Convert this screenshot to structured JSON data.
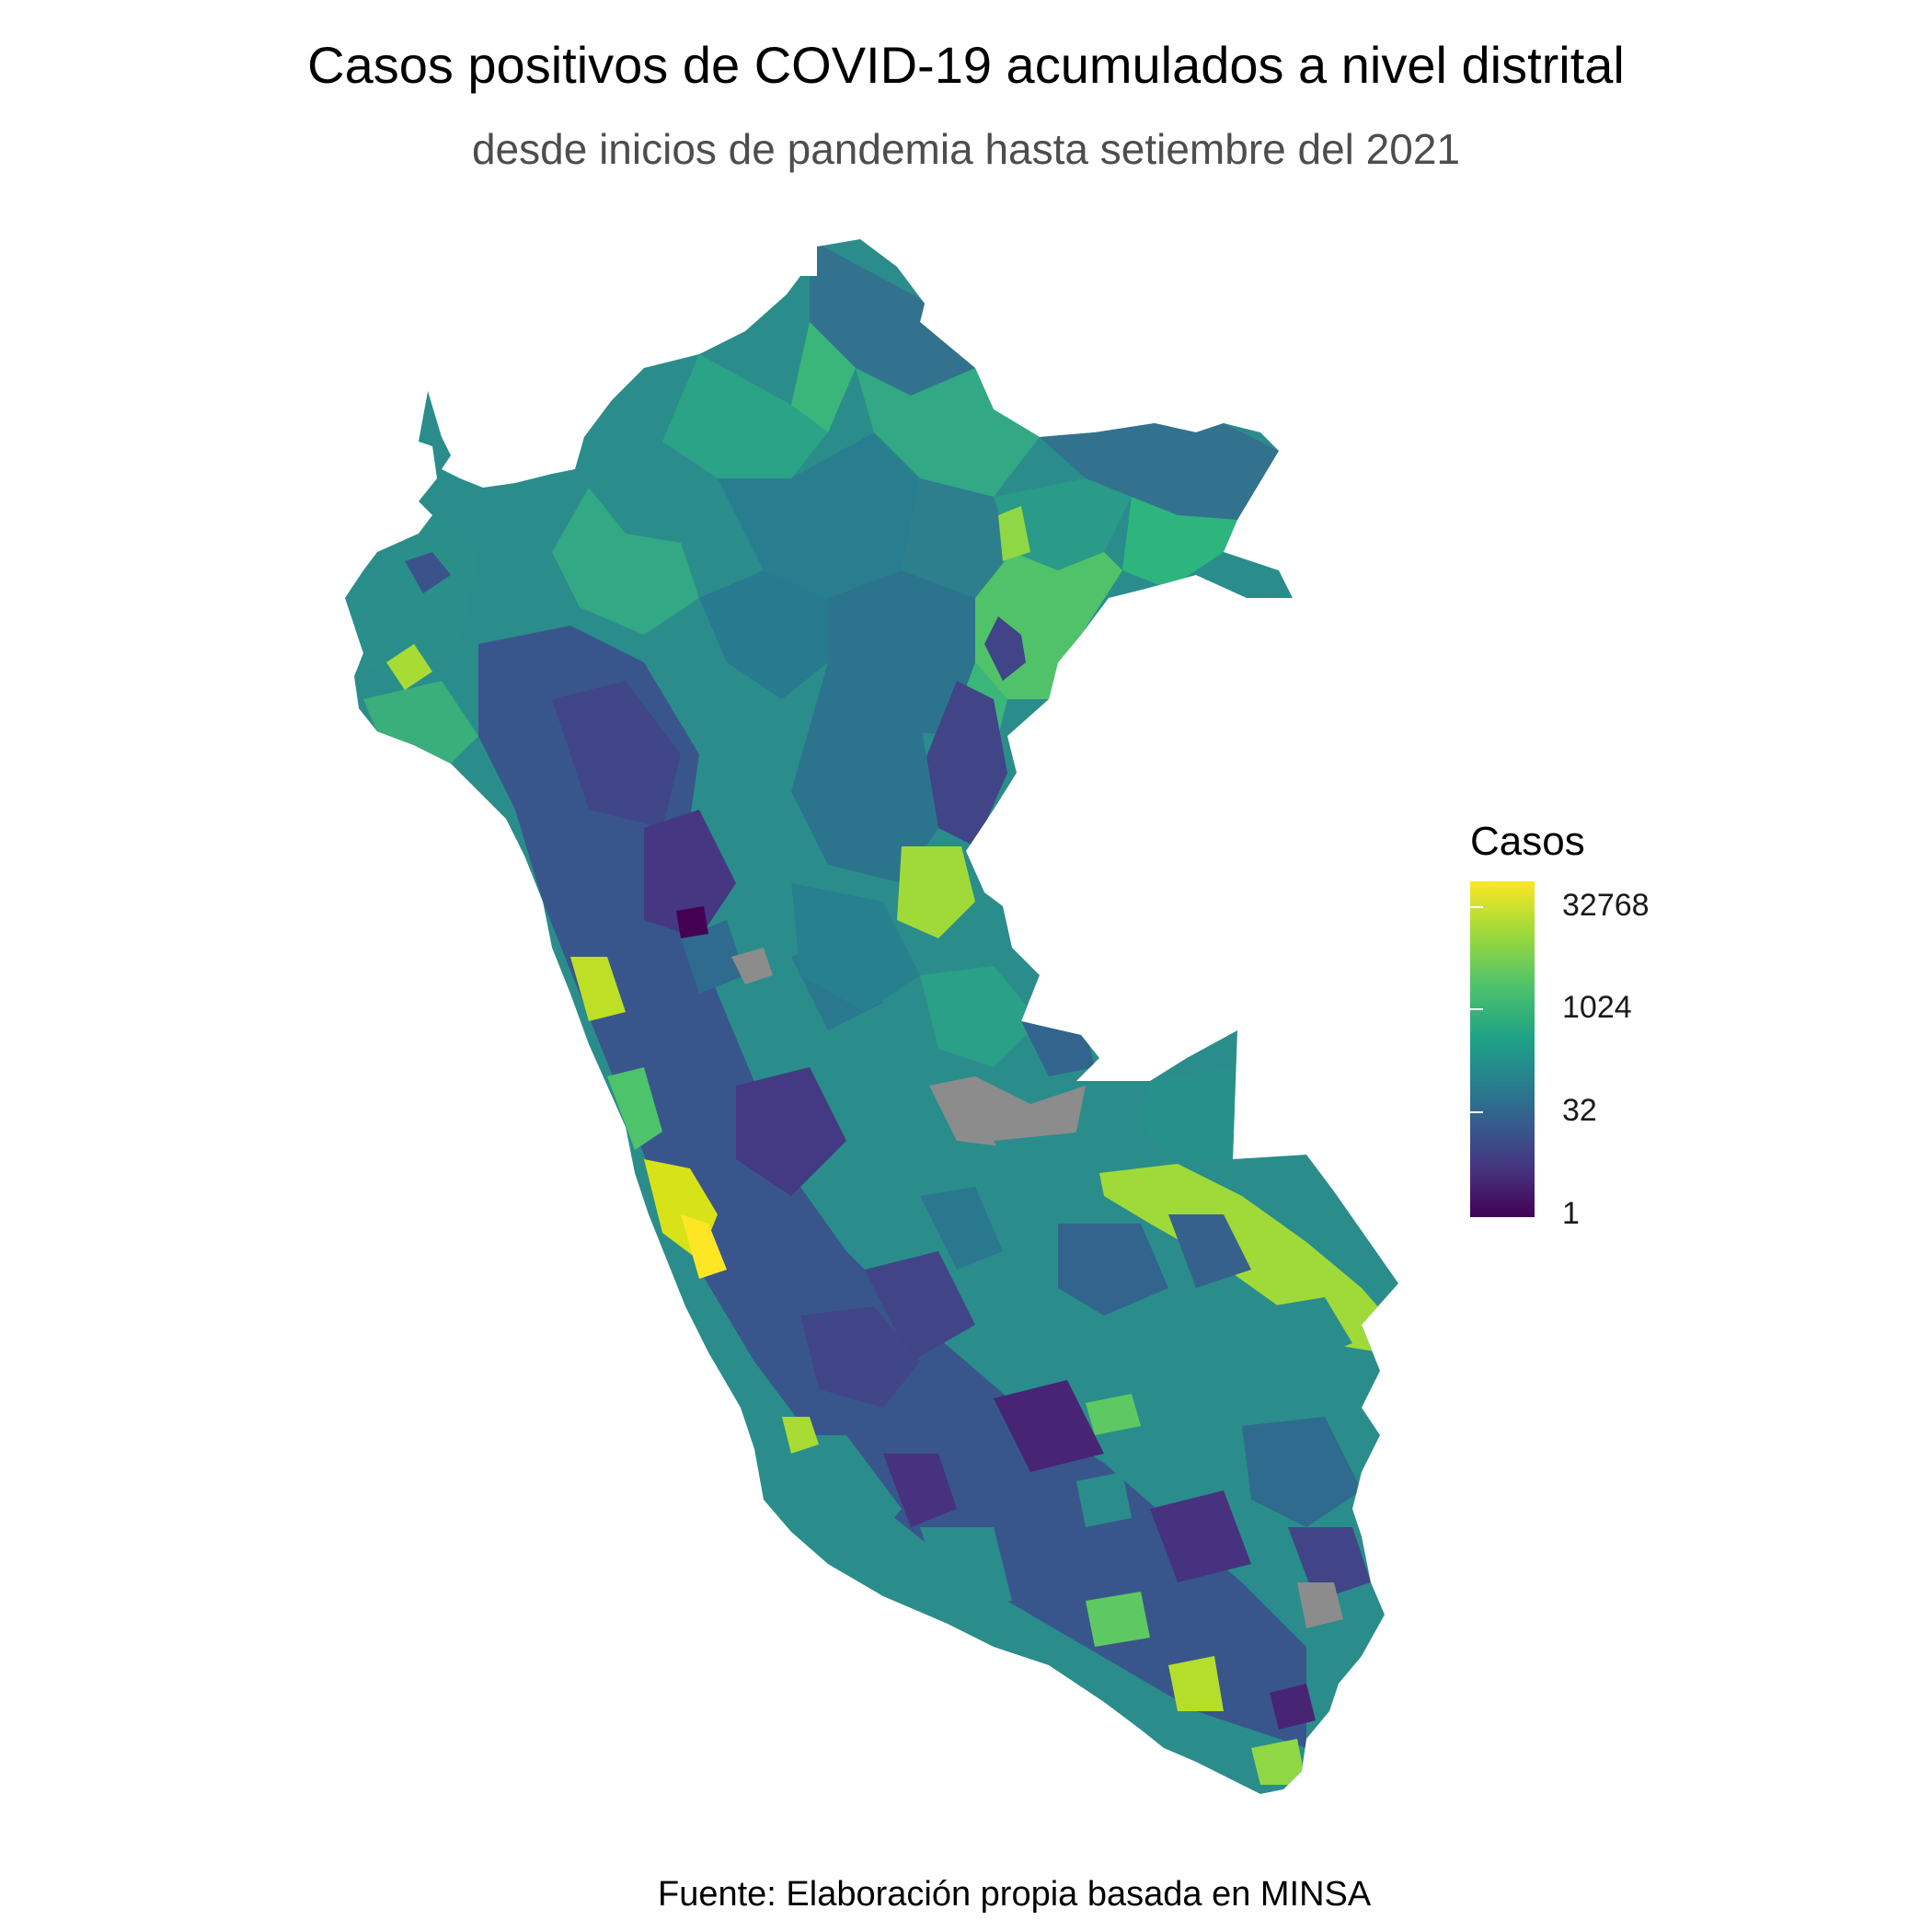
{
  "title": "Casos positivos de COVID-19 acumulados a nivel distrital",
  "subtitle": "desde inicios de pandemia hasta setiembre del 2021",
  "caption": "Fuente: Elaboración propia basada en MINSA",
  "legend": {
    "title": "Casos",
    "scale": "log2",
    "palette": "viridis",
    "ticks": [
      {
        "value": 32768,
        "label": "32768"
      },
      {
        "value": 1024,
        "label": "1024"
      },
      {
        "value": 32,
        "label": "32"
      },
      {
        "value": 1,
        "label": "1"
      }
    ],
    "max_color": "#fde725",
    "min_color": "#440154",
    "na_color": "#8c8c8c"
  },
  "map": {
    "region": "Perú",
    "unit": "distrito"
  }
}
